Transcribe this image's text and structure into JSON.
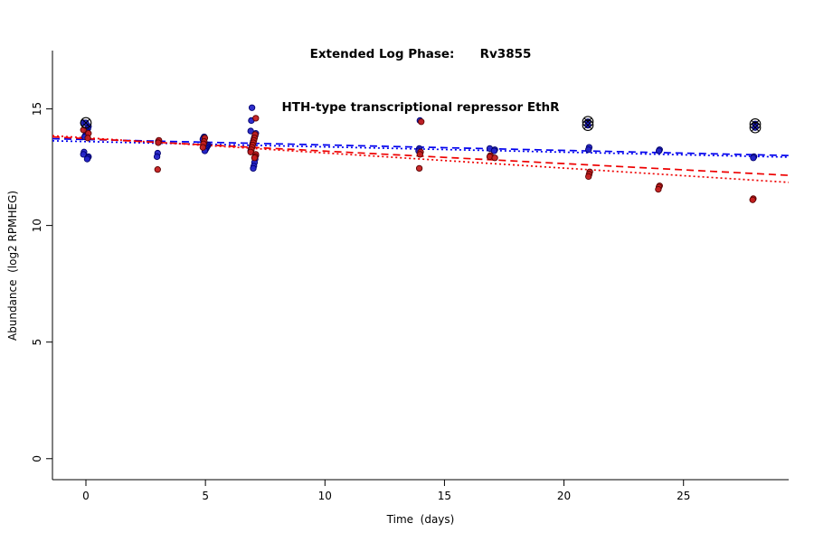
{
  "chart_data": {
    "type": "scatter",
    "title_line1": "Extended Log Phase:      Rv3855",
    "title_line2": "HTH-type transcriptional repressor EthR",
    "xlabel": "Time  (days)",
    "ylabel": "Abundance  (log2 RPMHEG)",
    "xlim": [
      -1.4,
      29.4
    ],
    "ylim": [
      -0.9,
      17.5
    ],
    "xticks": [
      0,
      5,
      10,
      15,
      20,
      25
    ],
    "yticks": [
      0,
      5,
      10,
      15
    ],
    "axis_color": "#000000",
    "series": [
      {
        "name": "blue",
        "color": "#2424c8",
        "edge_color": "#00006e",
        "points": [
          [
            0,
            14.4
          ],
          [
            0,
            14.25
          ],
          [
            0,
            14.15
          ],
          [
            0,
            14.05
          ],
          [
            0,
            14.0
          ],
          [
            0,
            13.9
          ],
          [
            0,
            13.85
          ],
          [
            0,
            13.8
          ],
          [
            0,
            13.15
          ],
          [
            0,
            13.05
          ],
          [
            0,
            12.95
          ],
          [
            0,
            12.9
          ],
          [
            0,
            12.85
          ],
          [
            3,
            13.6
          ],
          [
            3,
            13.1
          ],
          [
            3,
            12.95
          ],
          [
            5,
            13.8
          ],
          [
            5,
            13.75
          ],
          [
            5,
            13.7
          ],
          [
            5,
            13.45
          ],
          [
            5,
            13.4
          ],
          [
            5,
            13.35
          ],
          [
            5,
            13.3
          ],
          [
            5,
            13.25
          ],
          [
            5,
            13.2
          ],
          [
            7,
            15.05
          ],
          [
            7,
            14.5
          ],
          [
            7,
            14.05
          ],
          [
            7,
            13.95
          ],
          [
            7,
            13.85
          ],
          [
            7,
            13.8
          ],
          [
            7,
            13.7
          ],
          [
            7,
            13.6
          ],
          [
            7,
            13.5
          ],
          [
            7,
            13.4
          ],
          [
            7,
            13.3
          ],
          [
            7,
            13.2
          ],
          [
            7,
            13.0
          ],
          [
            7,
            12.85
          ],
          [
            7,
            12.7
          ],
          [
            7,
            12.55
          ],
          [
            7,
            12.45
          ],
          [
            14,
            14.5
          ],
          [
            14,
            13.3
          ],
          [
            14,
            13.2
          ],
          [
            17,
            13.3
          ],
          [
            17,
            13.25
          ],
          [
            17,
            13.2
          ],
          [
            21,
            13.35
          ],
          [
            21,
            13.25
          ],
          [
            24,
            13.25
          ],
          [
            24,
            13.2
          ],
          [
            28,
            12.95
          ],
          [
            28,
            12.9
          ]
        ]
      },
      {
        "name": "red",
        "color": "#c41f1f",
        "edge_color": "#5a0000",
        "points": [
          [
            0,
            14.1
          ],
          [
            0,
            13.95
          ],
          [
            0,
            13.75
          ],
          [
            3,
            13.65
          ],
          [
            3,
            13.55
          ],
          [
            3,
            12.4
          ],
          [
            5,
            13.75
          ],
          [
            5,
            13.6
          ],
          [
            5,
            13.5
          ],
          [
            5,
            13.35
          ],
          [
            7,
            14.6
          ],
          [
            7,
            13.9
          ],
          [
            7,
            13.75
          ],
          [
            7,
            13.65
          ],
          [
            7,
            13.55
          ],
          [
            7,
            13.45
          ],
          [
            7,
            13.35
          ],
          [
            7,
            13.25
          ],
          [
            7,
            13.15
          ],
          [
            7,
            13.05
          ],
          [
            7,
            12.95
          ],
          [
            7,
            12.9
          ],
          [
            14,
            14.45
          ],
          [
            14,
            13.15
          ],
          [
            14,
            13.05
          ],
          [
            14,
            12.45
          ],
          [
            17,
            13.0
          ],
          [
            17,
            12.95
          ],
          [
            17,
            12.9
          ],
          [
            21,
            12.3
          ],
          [
            21,
            12.2
          ],
          [
            21,
            12.1
          ],
          [
            24,
            11.7
          ],
          [
            24,
            11.65
          ],
          [
            24,
            11.55
          ],
          [
            28,
            11.15
          ],
          [
            28,
            11.1
          ]
        ]
      }
    ],
    "flagged_points": [
      [
        0,
        14.4
      ],
      [
        21,
        14.45
      ],
      [
        21,
        14.3
      ],
      [
        28,
        14.35
      ],
      [
        28,
        14.2
      ]
    ],
    "flagged_style": {
      "ring_color": "#000000",
      "dot_color": "#2424c8",
      "cross": true
    },
    "trend_lines": [
      {
        "color": "#0000ee",
        "style": "dashed",
        "x1": -1.4,
        "y1": 13.72,
        "x2": 29.4,
        "y2": 13.0
      },
      {
        "color": "#0000ee",
        "style": "dotted",
        "x1": -1.4,
        "y1": 13.63,
        "x2": 29.4,
        "y2": 12.93
      },
      {
        "color": "#ee0000",
        "style": "dashed",
        "x1": -1.4,
        "y1": 13.8,
        "x2": 29.4,
        "y2": 12.15
      },
      {
        "color": "#ee0000",
        "style": "dotted",
        "x1": -1.4,
        "y1": 13.85,
        "x2": 29.4,
        "y2": 11.85
      }
    ]
  }
}
